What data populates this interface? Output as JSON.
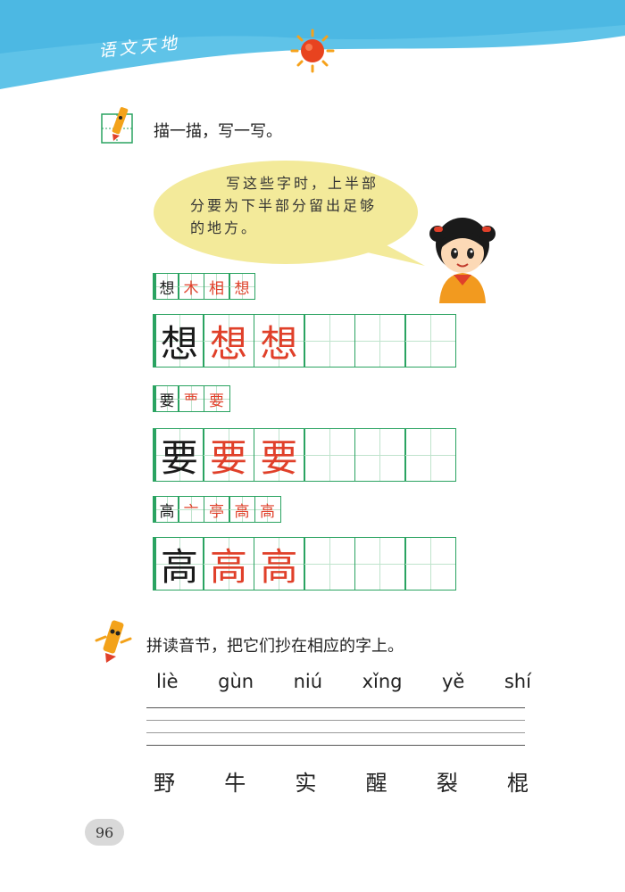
{
  "header": {
    "title": "语文天地"
  },
  "section1": {
    "title": "描一描，写一写。"
  },
  "speech": {
    "text": "写这些字时，上半部分要为下半部分留出足够的地方。"
  },
  "practice": [
    {
      "strokes": [
        "想",
        "木",
        "相",
        "想"
      ],
      "large": [
        "想",
        "想",
        "想",
        "",
        "",
        ""
      ]
    },
    {
      "strokes": [
        "要",
        "覀",
        "要"
      ],
      "large": [
        "要",
        "要",
        "要",
        "",
        "",
        ""
      ]
    },
    {
      "strokes": [
        "高",
        "亠",
        "亭",
        "高",
        "高"
      ],
      "large": [
        "高",
        "高",
        "高",
        "",
        "",
        ""
      ]
    }
  ],
  "section2": {
    "title": "拼读音节，把它们抄在相应的字上。"
  },
  "pinyin": [
    "liè",
    "gùn",
    "niú",
    "xǐng",
    "yě",
    "shí"
  ],
  "characters": [
    "野",
    "牛",
    "实",
    "醒",
    "裂",
    "棍"
  ],
  "page_number": "96",
  "colors": {
    "grid": "#2aa361",
    "accent": "#e0402a",
    "banner": "#5fc3e8",
    "bubble": "#f3ea9a"
  }
}
